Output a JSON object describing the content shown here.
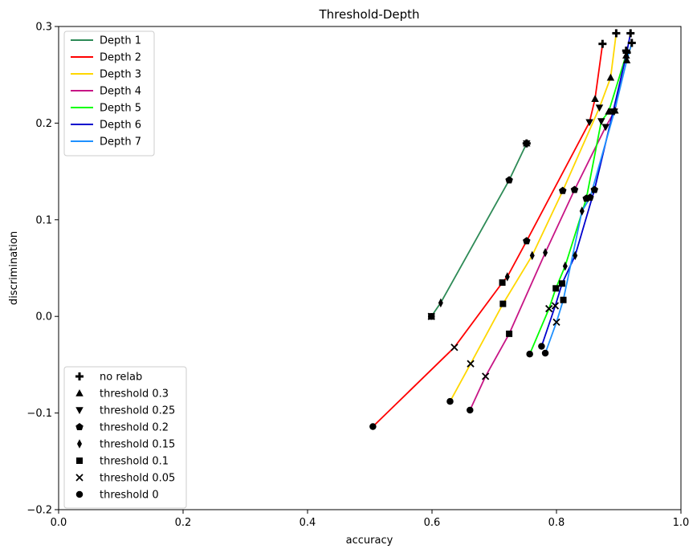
{
  "chart_data": {
    "type": "line",
    "title": "Threshold-Depth",
    "xlabel": "accuracy",
    "ylabel": "discrimination",
    "xlim": [
      0,
      1.0
    ],
    "ylim": [
      -0.2,
      0.3
    ],
    "xticks": [
      0.0,
      0.2,
      0.4,
      0.6,
      0.8,
      1.0
    ],
    "xtick_labels": [
      "0.0",
      "0.2",
      "0.4",
      "0.6",
      "0.8",
      "1.0"
    ],
    "yticks": [
      -0.2,
      -0.1,
      0.0,
      0.1,
      0.2,
      0.3
    ],
    "ytick_labels": [
      "−0.2",
      "−0.1",
      "0.0",
      "0.1",
      "0.2",
      "0.3"
    ],
    "grid": false,
    "series_legend_position": "upper-left",
    "marker_legend_position": "lower-left",
    "thresholds": [
      {
        "label": "no relab",
        "marker": "plus"
      },
      {
        "label": "threshold 0.3",
        "marker": "triangle-up"
      },
      {
        "label": "threshold 0.25",
        "marker": "triangle-down"
      },
      {
        "label": "threshold 0.2",
        "marker": "pentagon"
      },
      {
        "label": "threshold 0.15",
        "marker": "thin-diamond"
      },
      {
        "label": "threshold 0.1",
        "marker": "square"
      },
      {
        "label": "threshold 0.05",
        "marker": "x"
      },
      {
        "label": "threshold 0",
        "marker": "circle"
      }
    ],
    "series": [
      {
        "name": "Depth 1",
        "color": "#2e8b57",
        "points": [
          [
            0.752,
            0.179
          ],
          [
            0.752,
            0.179
          ],
          [
            0.752,
            0.179
          ],
          [
            0.724,
            0.141
          ],
          [
            0.614,
            0.014
          ],
          [
            0.599,
            0.0
          ],
          [
            0.599,
            0.0
          ],
          [
            0.599,
            0.0
          ]
        ]
      },
      {
        "name": "Depth 2",
        "color": "#ff0000",
        "points": [
          [
            0.874,
            0.282
          ],
          [
            0.862,
            0.225
          ],
          [
            0.853,
            0.201
          ],
          [
            0.752,
            0.078
          ],
          [
            0.721,
            0.041
          ],
          [
            0.713,
            0.035
          ],
          [
            0.636,
            -0.032
          ],
          [
            0.505,
            -0.114
          ]
        ]
      },
      {
        "name": "Depth 3",
        "color": "#ffd700",
        "points": [
          [
            0.896,
            0.293
          ],
          [
            0.887,
            0.247
          ],
          [
            0.869,
            0.216
          ],
          [
            0.81,
            0.13
          ],
          [
            0.761,
            0.063
          ],
          [
            0.714,
            0.013
          ],
          [
            0.662,
            -0.049
          ],
          [
            0.629,
            -0.088
          ]
        ]
      },
      {
        "name": "Depth 4",
        "color": "#c71585",
        "points": [
          [
            0.912,
            0.275
          ],
          [
            0.894,
            0.213
          ],
          [
            0.879,
            0.196
          ],
          [
            0.829,
            0.131
          ],
          [
            0.782,
            0.066
          ],
          [
            0.724,
            -0.018
          ],
          [
            0.686,
            -0.062
          ],
          [
            0.661,
            -0.097
          ]
        ]
      },
      {
        "name": "Depth 5",
        "color": "#00ff00",
        "points": [
          [
            0.913,
            0.273
          ],
          [
            0.884,
            0.212
          ],
          [
            0.872,
            0.202
          ],
          [
            0.848,
            0.122
          ],
          [
            0.814,
            0.052
          ],
          [
            0.799,
            0.029
          ],
          [
            0.788,
            0.008
          ],
          [
            0.757,
            -0.039
          ]
        ]
      },
      {
        "name": "Depth 6",
        "color": "#0000cd",
        "points": [
          [
            0.919,
            0.293
          ],
          [
            0.912,
            0.27
          ],
          [
            0.891,
            0.212
          ],
          [
            0.861,
            0.131
          ],
          [
            0.83,
            0.063
          ],
          [
            0.809,
            0.034
          ],
          [
            0.798,
            0.011
          ],
          [
            0.776,
            -0.031
          ]
        ]
      },
      {
        "name": "Depth 7",
        "color": "#1e90ff",
        "points": [
          [
            0.921,
            0.283
          ],
          [
            0.913,
            0.265
          ],
          [
            0.893,
            0.212
          ],
          [
            0.854,
            0.123
          ],
          [
            0.841,
            0.109
          ],
          [
            0.811,
            0.017
          ],
          [
            0.8,
            -0.006
          ],
          [
            0.782,
            -0.038
          ]
        ]
      }
    ]
  }
}
